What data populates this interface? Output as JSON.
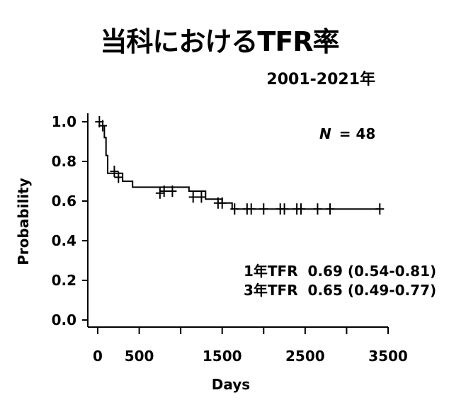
{
  "title": "当科におけるTFR率",
  "subtitle": "2001-2021年",
  "chart_data": {
    "type": "line",
    "step": true,
    "xlabel": "Days",
    "ylabel": "Probability",
    "xlim": [
      -200,
      3500
    ],
    "ylim": [
      0,
      1.0
    ],
    "xticks": [
      0,
      500,
      1500,
      2500,
      3500
    ],
    "xtick_labels": [
      "0",
      "500",
      "1500",
      "2500",
      "3500"
    ],
    "xticks_minor": [
      1000,
      2000,
      3000
    ],
    "yticks": [
      0.0,
      0.2,
      0.4,
      0.6,
      0.8,
      1.0
    ],
    "ytick_labels": [
      "0.0",
      "0.2",
      "0.4",
      "0.6",
      "0.8",
      "1.0"
    ],
    "series": [
      {
        "x": [
          0,
          60,
          80,
          100,
          120,
          300,
          420,
          1100,
          1300,
          1500,
          1620,
          3400
        ],
        "y": [
          1.0,
          0.98,
          0.92,
          0.83,
          0.74,
          0.7,
          0.67,
          0.65,
          0.61,
          0.59,
          0.56,
          0.56
        ]
      }
    ],
    "censored": [
      {
        "x": 20,
        "y": 1.0
      },
      {
        "x": 60,
        "y": 0.98
      },
      {
        "x": 200,
        "y": 0.75
      },
      {
        "x": 250,
        "y": 0.72
      },
      {
        "x": 750,
        "y": 0.64
      },
      {
        "x": 800,
        "y": 0.65
      },
      {
        "x": 900,
        "y": 0.65
      },
      {
        "x": 1150,
        "y": 0.62
      },
      {
        "x": 1250,
        "y": 0.62
      },
      {
        "x": 1450,
        "y": 0.59
      },
      {
        "x": 1500,
        "y": 0.59
      },
      {
        "x": 1650,
        "y": 0.56
      },
      {
        "x": 1800,
        "y": 0.56
      },
      {
        "x": 1850,
        "y": 0.56
      },
      {
        "x": 2000,
        "y": 0.56
      },
      {
        "x": 2200,
        "y": 0.56
      },
      {
        "x": 2250,
        "y": 0.56
      },
      {
        "x": 2400,
        "y": 0.56
      },
      {
        "x": 2450,
        "y": 0.56
      },
      {
        "x": 2650,
        "y": 0.56
      },
      {
        "x": 2800,
        "y": 0.56
      },
      {
        "x": 3400,
        "y": 0.56
      }
    ],
    "annotations": {
      "n_label": "N",
      "n_value": "= 48",
      "tfr_lines": [
        "1年TFR  0.69 (0.54-0.81)",
        "3年TFR  0.65 (0.49-0.77)"
      ]
    }
  }
}
